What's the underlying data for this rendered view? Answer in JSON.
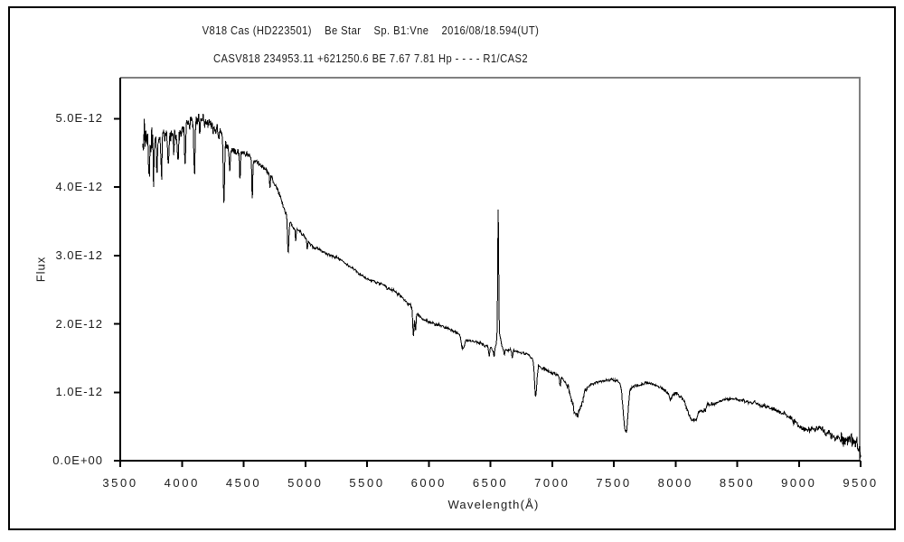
{
  "chart_data": {
    "type": "line",
    "title": "V818 Cas (HD223501)    Be Star    Sp. B1:Vne    2016/08/18.594(UT)",
    "subtitle": "CASV818 234953.11 +621250.6 BE 7.67 7.81 Hp - - - - R1/CAS2",
    "xlabel": "Wavelength(Å)",
    "ylabel": "Flux",
    "xlim": [
      3500,
      9500
    ],
    "ylim": [
      0,
      5.6
    ],
    "flux_scale": "1e-12",
    "grid": false,
    "legend": null,
    "line_color": "#000000",
    "axis_color": "#000000",
    "box_topright_color": "#808080",
    "x_ticks": [
      3500,
      4000,
      4500,
      5000,
      5500,
      6000,
      6500,
      7000,
      7500,
      8000,
      8500,
      9000,
      9500
    ],
    "y_ticks": [
      {
        "value": 0,
        "label": "0.0E+00"
      },
      {
        "value": 1,
        "label": "1.0E-12"
      },
      {
        "value": 2,
        "label": "2.0E-12"
      },
      {
        "value": 3,
        "label": "3.0E-12"
      },
      {
        "value": 4,
        "label": "4.0E-12"
      },
      {
        "value": 5,
        "label": "5.0E-12"
      }
    ],
    "wavelength_start": 3683,
    "wavelength_end": 9500,
    "sample_step_angstrom": 3,
    "continuum_points": {
      "format": [
        "wavelength_A",
        "flux_e12"
      ],
      "values": [
        [
          3683,
          4.65
        ],
        [
          3700,
          4.72
        ],
        [
          3760,
          4.65
        ],
        [
          3800,
          4.72
        ],
        [
          3860,
          4.78
        ],
        [
          3920,
          4.75
        ],
        [
          3980,
          4.78
        ],
        [
          4040,
          4.92
        ],
        [
          4110,
          5.0
        ],
        [
          4160,
          5.0
        ],
        [
          4220,
          4.92
        ],
        [
          4270,
          4.85
        ],
        [
          4320,
          4.78
        ],
        [
          4360,
          4.58
        ],
        [
          4420,
          4.52
        ],
        [
          4480,
          4.52
        ],
        [
          4540,
          4.45
        ],
        [
          4600,
          4.38
        ],
        [
          4660,
          4.3
        ],
        [
          4720,
          4.15
        ],
        [
          4780,
          3.95
        ],
        [
          4830,
          3.68
        ],
        [
          4870,
          3.5
        ],
        [
          4910,
          3.4
        ],
        [
          4960,
          3.35
        ],
        [
          5010,
          3.25
        ],
        [
          5060,
          3.12
        ],
        [
          5120,
          3.08
        ],
        [
          5180,
          3.02
        ],
        [
          5240,
          2.98
        ],
        [
          5300,
          2.92
        ],
        [
          5360,
          2.84
        ],
        [
          5420,
          2.76
        ],
        [
          5480,
          2.68
        ],
        [
          5540,
          2.63
        ],
        [
          5600,
          2.6
        ],
        [
          5660,
          2.54
        ],
        [
          5720,
          2.48
        ],
        [
          5780,
          2.4
        ],
        [
          5840,
          2.28
        ],
        [
          5880,
          2.22
        ],
        [
          5920,
          2.12
        ],
        [
          5960,
          2.06
        ],
        [
          6020,
          2.02
        ],
        [
          6080,
          1.98
        ],
        [
          6140,
          1.95
        ],
        [
          6200,
          1.9
        ],
        [
          6260,
          1.84
        ],
        [
          6320,
          1.76
        ],
        [
          6380,
          1.74
        ],
        [
          6440,
          1.7
        ],
        [
          6500,
          1.64
        ],
        [
          6560,
          1.6
        ],
        [
          6620,
          1.62
        ],
        [
          6680,
          1.62
        ],
        [
          6740,
          1.58
        ],
        [
          6800,
          1.56
        ],
        [
          6850,
          1.48
        ],
        [
          6900,
          1.38
        ],
        [
          6950,
          1.32
        ],
        [
          7000,
          1.29
        ],
        [
          7060,
          1.24
        ],
        [
          7120,
          1.15
        ],
        [
          7180,
          1.12
        ],
        [
          7240,
          1.1
        ],
        [
          7300,
          1.1
        ],
        [
          7360,
          1.15
        ],
        [
          7420,
          1.17
        ],
        [
          7480,
          1.18
        ],
        [
          7540,
          1.16
        ],
        [
          7600,
          1.12
        ],
        [
          7650,
          1.08
        ],
        [
          7700,
          1.1
        ],
        [
          7760,
          1.14
        ],
        [
          7820,
          1.12
        ],
        [
          7880,
          1.07
        ],
        [
          7940,
          1.0
        ],
        [
          8000,
          0.99
        ],
        [
          8060,
          0.95
        ],
        [
          8120,
          0.9
        ],
        [
          8180,
          0.85
        ],
        [
          8240,
          0.82
        ],
        [
          8300,
          0.82
        ],
        [
          8360,
          0.87
        ],
        [
          8420,
          0.9
        ],
        [
          8480,
          0.9
        ],
        [
          8540,
          0.88
        ],
        [
          8600,
          0.85
        ],
        [
          8660,
          0.83
        ],
        [
          8720,
          0.8
        ],
        [
          8780,
          0.77
        ],
        [
          8840,
          0.72
        ],
        [
          8900,
          0.66
        ],
        [
          8950,
          0.58
        ],
        [
          9000,
          0.5
        ],
        [
          9060,
          0.46
        ],
        [
          9120,
          0.46
        ],
        [
          9180,
          0.47
        ],
        [
          9240,
          0.42
        ],
        [
          9300,
          0.32
        ],
        [
          9360,
          0.28
        ],
        [
          9420,
          0.33
        ],
        [
          9470,
          0.25
        ],
        [
          9500,
          0.12
        ]
      ]
    },
    "absorption_lines": {
      "format": [
        "center_A",
        "depth_e12",
        "fwhm_A"
      ],
      "values": [
        [
          3735,
          0.5,
          10
        ],
        [
          3770,
          0.45,
          9
        ],
        [
          3798,
          0.45,
          9
        ],
        [
          3835,
          0.55,
          10
        ],
        [
          3889,
          0.5,
          10
        ],
        [
          3934,
          0.28,
          8
        ],
        [
          3970,
          0.45,
          10
        ],
        [
          4026,
          0.55,
          9
        ],
        [
          4101,
          0.8,
          11
        ],
        [
          4144,
          0.25,
          8
        ],
        [
          4340,
          0.95,
          11
        ],
        [
          4388,
          0.3,
          8
        ],
        [
          4471,
          0.4,
          9
        ],
        [
          4570,
          0.6,
          8
        ],
        [
          4713,
          0.2,
          8
        ],
        [
          4861,
          0.5,
          13
        ],
        [
          4922,
          0.18,
          8
        ],
        [
          5016,
          0.15,
          8
        ],
        [
          5876,
          0.4,
          13
        ],
        [
          5893,
          0.3,
          10
        ],
        [
          6277,
          0.18,
          30
        ],
        [
          6490,
          0.1,
          10
        ],
        [
          6530,
          0.14,
          9
        ],
        [
          6613,
          0.08,
          8
        ],
        [
          6678,
          0.12,
          9
        ],
        [
          6867,
          0.5,
          22
        ],
        [
          7065,
          0.13,
          10
        ],
        [
          7200,
          0.45,
          85
        ],
        [
          7594,
          0.68,
          42
        ],
        [
          7608,
          0.1,
          20
        ],
        [
          7960,
          0.1,
          25
        ],
        [
          8140,
          0.3,
          100
        ],
        [
          8230,
          0.08,
          30
        ]
      ]
    },
    "emission_lines": {
      "format": [
        "center_A",
        "amplitude_e12",
        "fwhm_A"
      ],
      "values": [
        [
          6563,
          1.8,
          9
        ],
        [
          6567,
          0.28,
          36
        ]
      ]
    },
    "noise_bands": {
      "format": [
        "from_A",
        "to_A",
        "amplitude_e12"
      ],
      "values": [
        [
          3683,
          3790,
          0.42
        ],
        [
          3790,
          3900,
          0.3
        ],
        [
          3900,
          4000,
          0.22
        ],
        [
          4000,
          4150,
          0.17
        ],
        [
          4150,
          4320,
          0.15
        ],
        [
          4320,
          4500,
          0.11
        ],
        [
          4500,
          4800,
          0.07
        ],
        [
          4800,
          5000,
          0.05
        ],
        [
          5000,
          5600,
          0.035
        ],
        [
          5600,
          5950,
          0.045
        ],
        [
          5950,
          6450,
          0.04
        ],
        [
          6450,
          6560,
          0.05
        ],
        [
          6570,
          6850,
          0.03
        ],
        [
          6850,
          7130,
          0.055
        ],
        [
          7130,
          7290,
          0.1
        ],
        [
          7290,
          7560,
          0.03
        ],
        [
          7560,
          7700,
          0.05
        ],
        [
          7700,
          7920,
          0.03
        ],
        [
          7920,
          8300,
          0.06
        ],
        [
          8300,
          8620,
          0.035
        ],
        [
          8620,
          8920,
          0.055
        ],
        [
          8920,
          9200,
          0.085
        ],
        [
          9200,
          9340,
          0.12
        ],
        [
          9340,
          9500,
          0.2
        ]
      ]
    }
  }
}
